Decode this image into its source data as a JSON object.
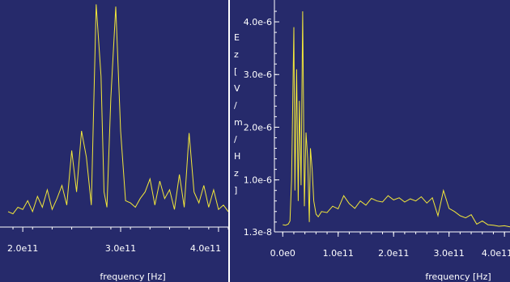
{
  "colors": {
    "background": "#262a6b",
    "trace": "#f2e73a",
    "axis": "#ffffff",
    "divider": "#ffffff"
  },
  "chart_data": [
    {
      "type": "line",
      "title": "",
      "xlabel": "frequency [Hz]",
      "ylabel": "",
      "xlim": [
        185000000000.0,
        410000000000.0
      ],
      "ylim": [
        0,
        1
      ],
      "x_ticks": [
        {
          "value": 200000000000.0,
          "label": "2.0e11"
        },
        {
          "value": 300000000000.0,
          "label": "3.0e11"
        },
        {
          "value": 400000000000.0,
          "label": "4.0e11"
        }
      ],
      "y_ticks": [],
      "series": [
        {
          "x": [
            185000000000.0,
            190000000000.0,
            195000000000.0,
            200000000000.0,
            205000000000.0,
            210000000000.0,
            215000000000.0,
            220000000000.0,
            225000000000.0,
            230000000000.0,
            235000000000.0,
            240000000000.0,
            245000000000.0,
            250000000000.0,
            255000000000.0,
            260000000000.0,
            265000000000.0,
            270000000000.0,
            275000000000.0,
            280000000000.0,
            283000000000.0,
            286000000000.0,
            290000000000.0,
            295000000000.0,
            300000000000.0,
            305000000000.0,
            310000000000.0,
            315000000000.0,
            320000000000.0,
            325000000000.0,
            330000000000.0,
            335000000000.0,
            340000000000.0,
            345000000000.0,
            350000000000.0,
            355000000000.0,
            360000000000.0,
            365000000000.0,
            370000000000.0,
            375000000000.0,
            380000000000.0,
            385000000000.0,
            390000000000.0,
            395000000000.0,
            400000000000.0,
            405000000000.0,
            410000000000.0
          ],
          "y": [
            0.03,
            0.02,
            0.05,
            0.04,
            0.08,
            0.03,
            0.1,
            0.05,
            0.13,
            0.04,
            0.09,
            0.15,
            0.06,
            0.31,
            0.12,
            0.4,
            0.28,
            0.06,
            0.98,
            0.65,
            0.12,
            0.05,
            0.55,
            0.97,
            0.4,
            0.08,
            0.07,
            0.05,
            0.09,
            0.12,
            0.18,
            0.06,
            0.17,
            0.09,
            0.13,
            0.04,
            0.2,
            0.05,
            0.39,
            0.12,
            0.07,
            0.15,
            0.05,
            0.13,
            0.04,
            0.06,
            0.03
          ]
        }
      ],
      "grid": false,
      "legend": "none"
    },
    {
      "type": "line",
      "title": "",
      "xlabel": "frequency [Hz]",
      "ylabel": "Ez[V/m/Hz]",
      "xlim": [
        -15000000000.0,
        410000000000.0
      ],
      "ylim": [
        1.3e-08,
        4.2e-06
      ],
      "x_ticks": [
        {
          "value": 0,
          "label": "0.0e0"
        },
        {
          "value": 100000000000.0,
          "label": "1.0e11"
        },
        {
          "value": 200000000000.0,
          "label": "2.0e11"
        },
        {
          "value": 300000000000.0,
          "label": "3.0e11"
        },
        {
          "value": 400000000000.0,
          "label": "4.0e11"
        }
      ],
      "y_ticks": [
        {
          "value": 1.3e-08,
          "label": "1.3e-8"
        },
        {
          "value": 1e-06,
          "label": "1.0e-6"
        },
        {
          "value": 2e-06,
          "label": "2.0e-6"
        },
        {
          "value": 3e-06,
          "label": "3.0e-6"
        },
        {
          "value": 4e-06,
          "label": "4.0e-6"
        }
      ],
      "series": [
        {
          "x": [
            0,
            5000000000.0,
            10000000000.0,
            13000000000.0,
            16000000000.0,
            20000000000.0,
            22000000000.0,
            25000000000.0,
            28000000000.0,
            30000000000.0,
            33000000000.0,
            36000000000.0,
            39000000000.0,
            42000000000.0,
            45000000000.0,
            48000000000.0,
            50000000000.0,
            53000000000.0,
            56000000000.0,
            60000000000.0,
            64000000000.0,
            70000000000.0,
            80000000000.0,
            90000000000.0,
            100000000000.0,
            110000000000.0,
            120000000000.0,
            130000000000.0,
            140000000000.0,
            150000000000.0,
            160000000000.0,
            170000000000.0,
            180000000000.0,
            190000000000.0,
            200000000000.0,
            210000000000.0,
            220000000000.0,
            230000000000.0,
            240000000000.0,
            250000000000.0,
            260000000000.0,
            270000000000.0,
            280000000000.0,
            290000000000.0,
            300000000000.0,
            310000000000.0,
            320000000000.0,
            330000000000.0,
            340000000000.0,
            350000000000.0,
            360000000000.0,
            370000000000.0,
            380000000000.0,
            390000000000.0,
            400000000000.0,
            410000000000.0
          ],
          "y": [
            1.5e-07,
            1.4e-07,
            1.6e-07,
            2.2e-07,
            1e-06,
            3.9e-06,
            8e-07,
            3.1e-06,
            6e-07,
            2.5e-06,
            9e-07,
            4.2e-06,
            5e-07,
            1.9e-06,
            1.4e-06,
            2e-07,
            1.6e-06,
            1.2e-06,
            6e-07,
            3.5e-07,
            3e-07,
            4e-07,
            3.8e-07,
            5e-07,
            4.5e-07,
            7e-07,
            5.5e-07,
            4.6e-07,
            6e-07,
            5.2e-07,
            6.5e-07,
            6e-07,
            5.8e-07,
            7e-07,
            6.2e-07,
            6.6e-07,
            5.8e-07,
            6.4e-07,
            6e-07,
            6.8e-07,
            5.6e-07,
            6.6e-07,
            3.2e-07,
            8e-07,
            4.6e-07,
            4e-07,
            3.2e-07,
            2.8e-07,
            3.4e-07,
            1.6e-07,
            2.2e-07,
            1.5e-07,
            1.4e-07,
            1.2e-07,
            1.3e-07,
            1.1e-07
          ]
        }
      ],
      "grid": false,
      "legend": "none"
    }
  ]
}
